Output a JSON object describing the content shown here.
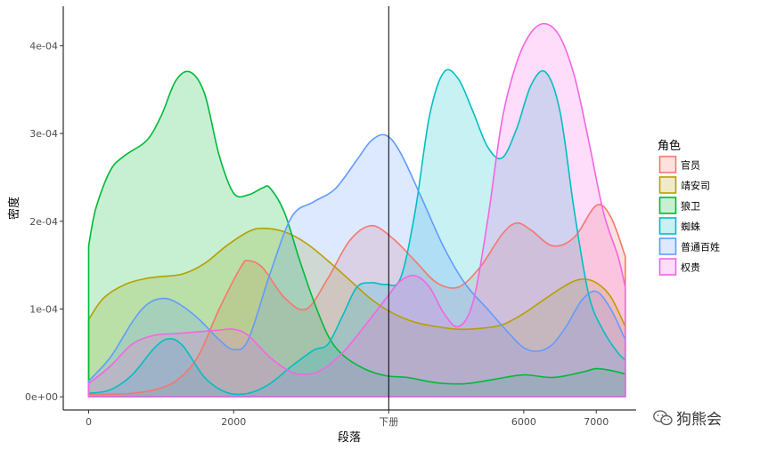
{
  "chart_data": {
    "type": "area",
    "title": "",
    "xlabel": "段落",
    "ylabel": "密度",
    "xlim": [
      -350,
      7550
    ],
    "ylim": [
      -1.5e-05,
      0.000445
    ],
    "x_ticks": [
      {
        "value": 0,
        "label": "0"
      },
      {
        "value": 2000,
        "label": "2000"
      },
      {
        "value": 4138,
        "label": "下册"
      },
      {
        "value": 6000,
        "label": "6000"
      },
      {
        "value": 7000,
        "label": "7000"
      }
    ],
    "y_ticks": [
      {
        "value": 0,
        "label": "0e+00"
      },
      {
        "value": 0.0001,
        "label": "1e-04"
      },
      {
        "value": 0.0002,
        "label": "2e-04"
      },
      {
        "value": 0.0003,
        "label": "3e-04"
      },
      {
        "value": 0.0004,
        "label": "4e-04"
      }
    ],
    "vline": 4138,
    "legend_title": "角色",
    "legend_position": "right",
    "grid": false,
    "series": [
      {
        "name": "官员",
        "color": "#F8766D",
        "x": [
          0,
          300,
          600,
          900,
          1200,
          1500,
          1800,
          2100,
          2200,
          2400,
          2700,
          3000,
          3300,
          3600,
          3900,
          4200,
          4500,
          4800,
          5100,
          5400,
          5700,
          5900,
          6100,
          6400,
          6700,
          7000,
          7200,
          7400
        ],
        "y": [
          3e-06,
          3e-06,
          4e-06,
          8e-06,
          1.8e-05,
          4.5e-05,
          0.0001,
          0.000148,
          0.000155,
          0.000147,
          0.000113,
          0.0001,
          0.000135,
          0.000178,
          0.000195,
          0.00018,
          0.000155,
          0.00013,
          0.000125,
          0.000148,
          0.000185,
          0.000198,
          0.00019,
          0.000172,
          0.000182,
          0.000218,
          0.000205,
          0.00016
        ]
      },
      {
        "name": "靖安司",
        "color": "#B79F00",
        "x": [
          0,
          200,
          500,
          800,
          1000,
          1300,
          1600,
          1900,
          2200,
          2400,
          2700,
          3000,
          3300,
          3600,
          3900,
          4200,
          4500,
          4800,
          5100,
          5400,
          5700,
          6000,
          6300,
          6600,
          6800,
          7000,
          7200,
          7400
        ],
        "y": [
          8.8e-05,
          0.000112,
          0.000128,
          0.000135,
          0.000137,
          0.00014,
          0.000152,
          0.000172,
          0.000188,
          0.000192,
          0.000188,
          0.000175,
          0.000155,
          0.000133,
          0.000111,
          9.5e-05,
          8.5e-05,
          8e-05,
          7.7e-05,
          7.8e-05,
          8.2e-05,
          9.5e-05,
          0.000112,
          0.000128,
          0.000134,
          0.00013,
          0.000114,
          8e-05
        ]
      },
      {
        "name": "狼卫",
        "color": "#00BA38",
        "x": [
          0,
          100,
          300,
          500,
          800,
          1000,
          1200,
          1400,
          1600,
          1800,
          2000,
          2200,
          2400,
          2500,
          2700,
          2900,
          3100,
          3300,
          3500,
          3800,
          4100,
          4400,
          4800,
          5200,
          5600,
          6000,
          6400,
          6800,
          7000,
          7200,
          7400
        ],
        "y": [
          0.000172,
          0.000215,
          0.000258,
          0.000275,
          0.000292,
          0.00032,
          0.00036,
          0.00037,
          0.000345,
          0.000275,
          0.000232,
          0.00023,
          0.000238,
          0.000238,
          0.00021,
          0.000158,
          0.00011,
          7e-05,
          4.8e-05,
          3.2e-05,
          2.4e-05,
          2.2e-05,
          1.6e-05,
          1.5e-05,
          2e-05,
          2.5e-05,
          2.2e-05,
          2.8e-05,
          3.2e-05,
          3e-05,
          2.6e-05
        ]
      },
      {
        "name": "蜘蛛",
        "color": "#00BFC4",
        "x": [
          0,
          300,
          600,
          900,
          1100,
          1300,
          1600,
          1900,
          2200,
          2500,
          2800,
          3100,
          3300,
          3500,
          3700,
          3900,
          4100,
          4300,
          4500,
          4700,
          4900,
          5100,
          5300,
          5500,
          5700,
          5900,
          6100,
          6300,
          6500,
          6700,
          6900,
          7100,
          7300,
          7400
        ],
        "y": [
          4e-06,
          8e-06,
          2.5e-05,
          5.5e-05,
          6.6e-05,
          5.8e-05,
          2.2e-05,
          5e-06,
          4e-06,
          1.5e-05,
          3.5e-05,
          5.3e-05,
          6e-05,
          9.2e-05,
          0.000125,
          0.00013,
          0.000128,
          0.000135,
          0.00021,
          0.00032,
          0.00037,
          0.000362,
          0.000325,
          0.000285,
          0.000272,
          0.000305,
          0.000355,
          0.00037,
          0.000325,
          0.00021,
          0.000115,
          7.5e-05,
          5e-05,
          4.2e-05
        ]
      },
      {
        "name": "普通百姓",
        "color": "#619CFF",
        "x": [
          0,
          300,
          600,
          800,
          1000,
          1200,
          1500,
          1800,
          2000,
          2200,
          2500,
          2800,
          3100,
          3400,
          3700,
          3900,
          4100,
          4300,
          4600,
          4900,
          5200,
          5500,
          5800,
          6000,
          6200,
          6400,
          6600,
          6800,
          7000,
          7200,
          7400
        ],
        "y": [
          1.8e-05,
          4.5e-05,
          8.5e-05,
          0.000105,
          0.000112,
          0.000108,
          9e-05,
          6.5e-05,
          5.4e-05,
          6.5e-05,
          0.00014,
          0.000205,
          0.000222,
          0.000237,
          0.00027,
          0.000292,
          0.000298,
          0.000278,
          0.000225,
          0.00017,
          0.000128,
          0.0001,
          7.2e-05,
          5.6e-05,
          5.2e-05,
          6e-05,
          8.2e-05,
          0.00011,
          0.00012,
          0.0001,
          6.5e-05
        ]
      },
      {
        "name": "权贵",
        "color": "#F564E3",
        "x": [
          0,
          300,
          600,
          900,
          1200,
          1500,
          1800,
          2000,
          2200,
          2500,
          2800,
          3000,
          3200,
          3500,
          3800,
          4100,
          4300,
          4500,
          4700,
          4900,
          5100,
          5300,
          5500,
          5700,
          5900,
          6100,
          6300,
          6500,
          6700,
          6900,
          7100,
          7300,
          7400
        ],
        "y": [
          1.5e-05,
          3.5e-05,
          6e-05,
          7e-05,
          7.2e-05,
          7.4e-05,
          7.6e-05,
          7.7e-05,
          7e-05,
          4.5e-05,
          2.8e-05,
          2.6e-05,
          3e-05,
          5e-05,
          8e-05,
          0.000112,
          0.000132,
          0.000138,
          0.000125,
          9.5e-05,
          8e-05,
          0.000108,
          0.0002,
          0.000315,
          0.00038,
          0.000415,
          0.000425,
          0.00041,
          0.000365,
          0.00029,
          0.00021,
          0.00016,
          0.000125
        ]
      }
    ]
  },
  "watermark": {
    "text": "狗熊会",
    "icon": "wechat-icon"
  }
}
